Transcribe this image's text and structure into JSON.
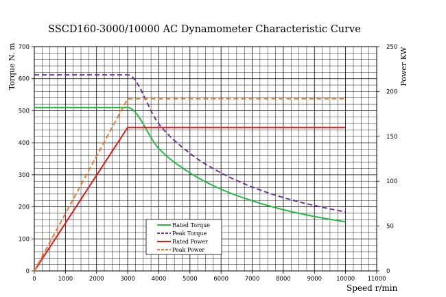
{
  "chart_data": {
    "type": "line",
    "title": "SSCD160-3000/10000 AC Dynamometer Characteristic Curve",
    "xlabel": "Speed r/min",
    "ylabel": "Torque N. m",
    "y2label": "Power KW",
    "xlim": [
      0,
      11000
    ],
    "ylim": [
      0,
      700
    ],
    "y2lim": [
      0,
      250
    ],
    "xticks": [
      0,
      1000,
      2000,
      3000,
      4000,
      5000,
      6000,
      7000,
      8000,
      9000,
      10000,
      11000
    ],
    "yticks": [
      0,
      100,
      200,
      300,
      400,
      500,
      600,
      700
    ],
    "y2ticks": [
      0,
      50,
      100,
      150,
      200,
      250
    ],
    "grid": true,
    "legend_position": "bottom-center",
    "series": [
      {
        "name": "Rated Torque",
        "axis": "left",
        "color": "#22bb44",
        "dash": "solid",
        "x": [
          0,
          3000,
          4000,
          5000,
          6000,
          7000,
          8000,
          9000,
          10000
        ],
        "y": [
          510,
          510,
          382,
          306,
          255,
          219,
          191,
          170,
          153
        ]
      },
      {
        "name": "Peak Torque",
        "axis": "left",
        "color": "#7030a0",
        "dash": "dashed",
        "x": [
          0,
          3000,
          4000,
          5000,
          6000,
          7000,
          8000,
          9000,
          10000
        ],
        "y": [
          612,
          612,
          459,
          367,
          306,
          262,
          229,
          204,
          184
        ]
      },
      {
        "name": "Rated Power",
        "axis": "right",
        "color": "#ee1111",
        "dash": "solid",
        "x": [
          0,
          3000,
          10000
        ],
        "y": [
          0,
          160,
          160
        ]
      },
      {
        "name": "Peak Power",
        "axis": "right",
        "color": "#ee7722",
        "dash": "dashed",
        "x": [
          0,
          3000,
          10000
        ],
        "y": [
          0,
          192,
          192
        ]
      }
    ]
  }
}
